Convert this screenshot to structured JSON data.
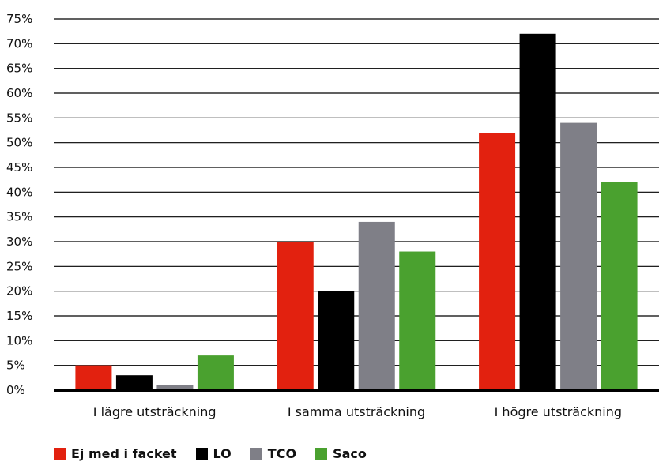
{
  "chart_data": {
    "type": "bar",
    "categories": [
      "I lägre utsträckning",
      "I samma utsträckning",
      "I högre utsträckning"
    ],
    "series": [
      {
        "name": "Ej med i facket",
        "color": "#e2210f",
        "values": [
          5,
          30,
          52
        ]
      },
      {
        "name": "LO",
        "color": "#000000",
        "values": [
          3,
          20,
          72
        ]
      },
      {
        "name": "TCO",
        "color": "#7f7f87",
        "values": [
          1,
          34,
          54
        ]
      },
      {
        "name": "Saco",
        "color": "#4aa12f",
        "values": [
          7,
          28,
          42
        ]
      }
    ],
    "yticks": [
      "0%",
      "5%",
      "10%",
      "15%",
      "20%",
      "25%",
      "30%",
      "35%",
      "40%",
      "45%",
      "50%",
      "55%",
      "60%",
      "65%",
      "70%",
      "75%"
    ],
    "ylim": [
      0,
      75
    ],
    "grid": true,
    "legend_position": "bottom-left"
  }
}
